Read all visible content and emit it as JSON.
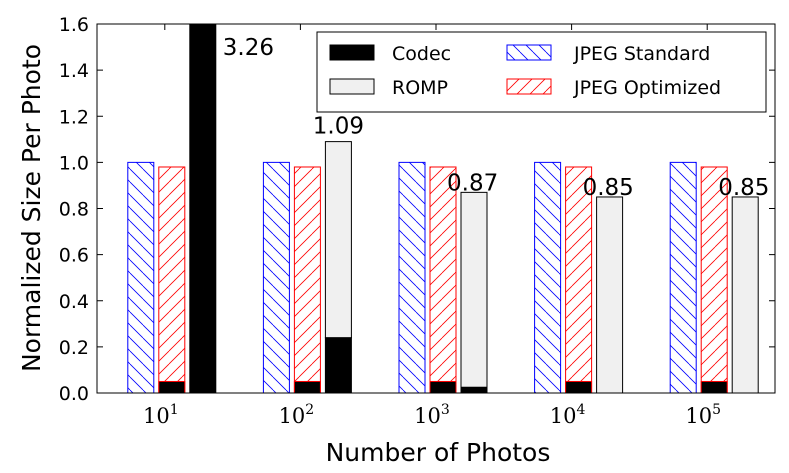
{
  "chart_data": {
    "type": "bar",
    "xlabel": "Number of Photos",
    "ylabel": "Normalized Size Per Photo",
    "ylim": [
      0,
      1.6
    ],
    "yticks": [
      "0.0",
      "0.2",
      "0.4",
      "0.6",
      "0.8",
      "1.0",
      "1.2",
      "1.4",
      "1.6"
    ],
    "categories": [
      {
        "base": "10",
        "exp": "1"
      },
      {
        "base": "10",
        "exp": "2"
      },
      {
        "base": "10",
        "exp": "3"
      },
      {
        "base": "10",
        "exp": "4"
      },
      {
        "base": "10",
        "exp": "5"
      }
    ],
    "series": [
      {
        "name": "JPEG Standard",
        "values": [
          1.0,
          1.0,
          1.0,
          1.0,
          1.0
        ]
      },
      {
        "name": "JPEG Optimized",
        "values": [
          0.98,
          0.98,
          0.98,
          0.98,
          0.98
        ],
        "codec_part": [
          0.05,
          0.05,
          0.05,
          0.05,
          0.05
        ]
      },
      {
        "name": "Codec + ROMP",
        "codec": [
          3.26,
          0.24,
          0.025,
          0.0,
          0.0
        ],
        "romp": [
          0.0,
          0.85,
          0.845,
          0.85,
          0.85
        ],
        "labels": [
          "3.26",
          "1.09",
          "0.87",
          "0.85",
          "0.85"
        ]
      }
    ],
    "legend": [
      "Codec",
      "JPEG Standard",
      "ROMP",
      "JPEG Optimized"
    ],
    "legend_position": "top-right",
    "colors": {
      "codec": "#000000",
      "romp": "#f0f0f0",
      "jpeg_standard": "#0000ff",
      "jpeg_optimized": "#ff0000"
    }
  }
}
